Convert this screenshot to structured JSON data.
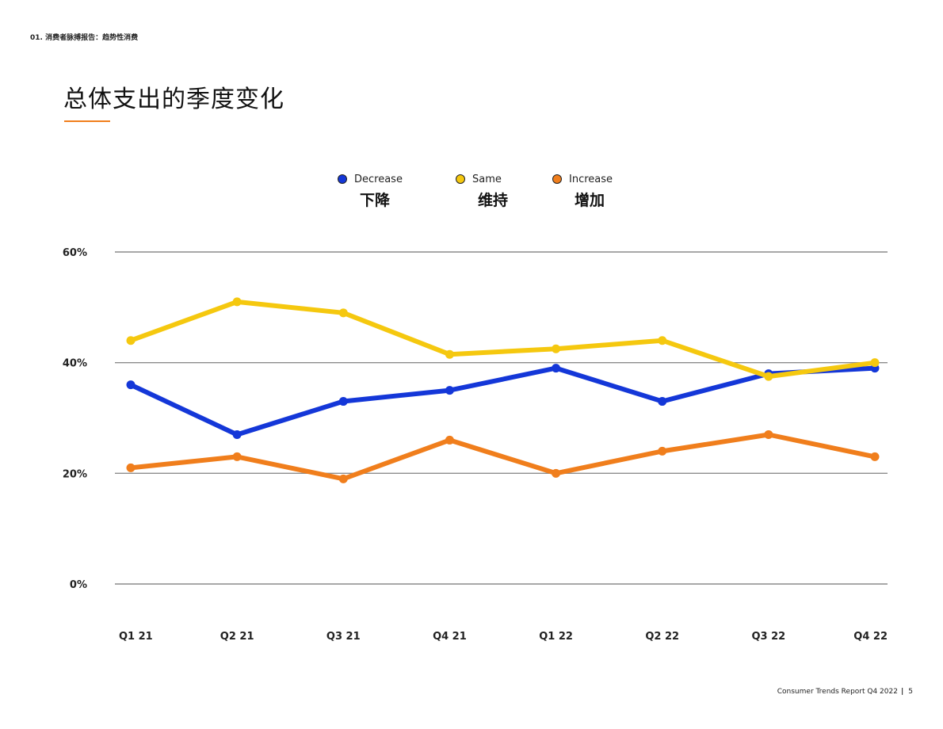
{
  "header": {
    "breadcrumb": "01. 消费者脉搏报告：趋势性消费",
    "title": "总体支出的季度变化"
  },
  "footer": {
    "report": "Consumer Trends Report Q4 2022",
    "separator": "|",
    "page_number": "5"
  },
  "colors": {
    "accent": "#f07e1c",
    "decrease": "#1437d8",
    "same": "#f5c80f",
    "increase": "#f07e1c",
    "grid": "#8c8c8c"
  },
  "chart_data": {
    "type": "line",
    "categories": [
      "Q1 21",
      "Q2 21",
      "Q3 21",
      "Q4 21",
      "Q1 22",
      "Q2 22",
      "Q3 22",
      "Q4 22"
    ],
    "ylim": [
      0,
      60
    ],
    "yticks": [
      0,
      20,
      40,
      60
    ],
    "ytick_labels": [
      "0%",
      "20%",
      "40%",
      "60%"
    ],
    "grid": true,
    "legend_position": "top-center",
    "series": [
      {
        "key": "decrease",
        "name": "Decrease",
        "name_zh": "下降",
        "values": [
          36,
          27,
          33,
          35,
          39,
          33,
          38,
          39
        ]
      },
      {
        "key": "same",
        "name": "Same",
        "name_zh": "维持",
        "values": [
          44,
          51,
          49,
          41.5,
          42.5,
          44,
          37.5,
          40
        ]
      },
      {
        "key": "increase",
        "name": "Increase",
        "name_zh": "增加",
        "values": [
          21,
          23,
          19,
          26,
          20,
          24,
          27,
          23
        ]
      }
    ]
  }
}
